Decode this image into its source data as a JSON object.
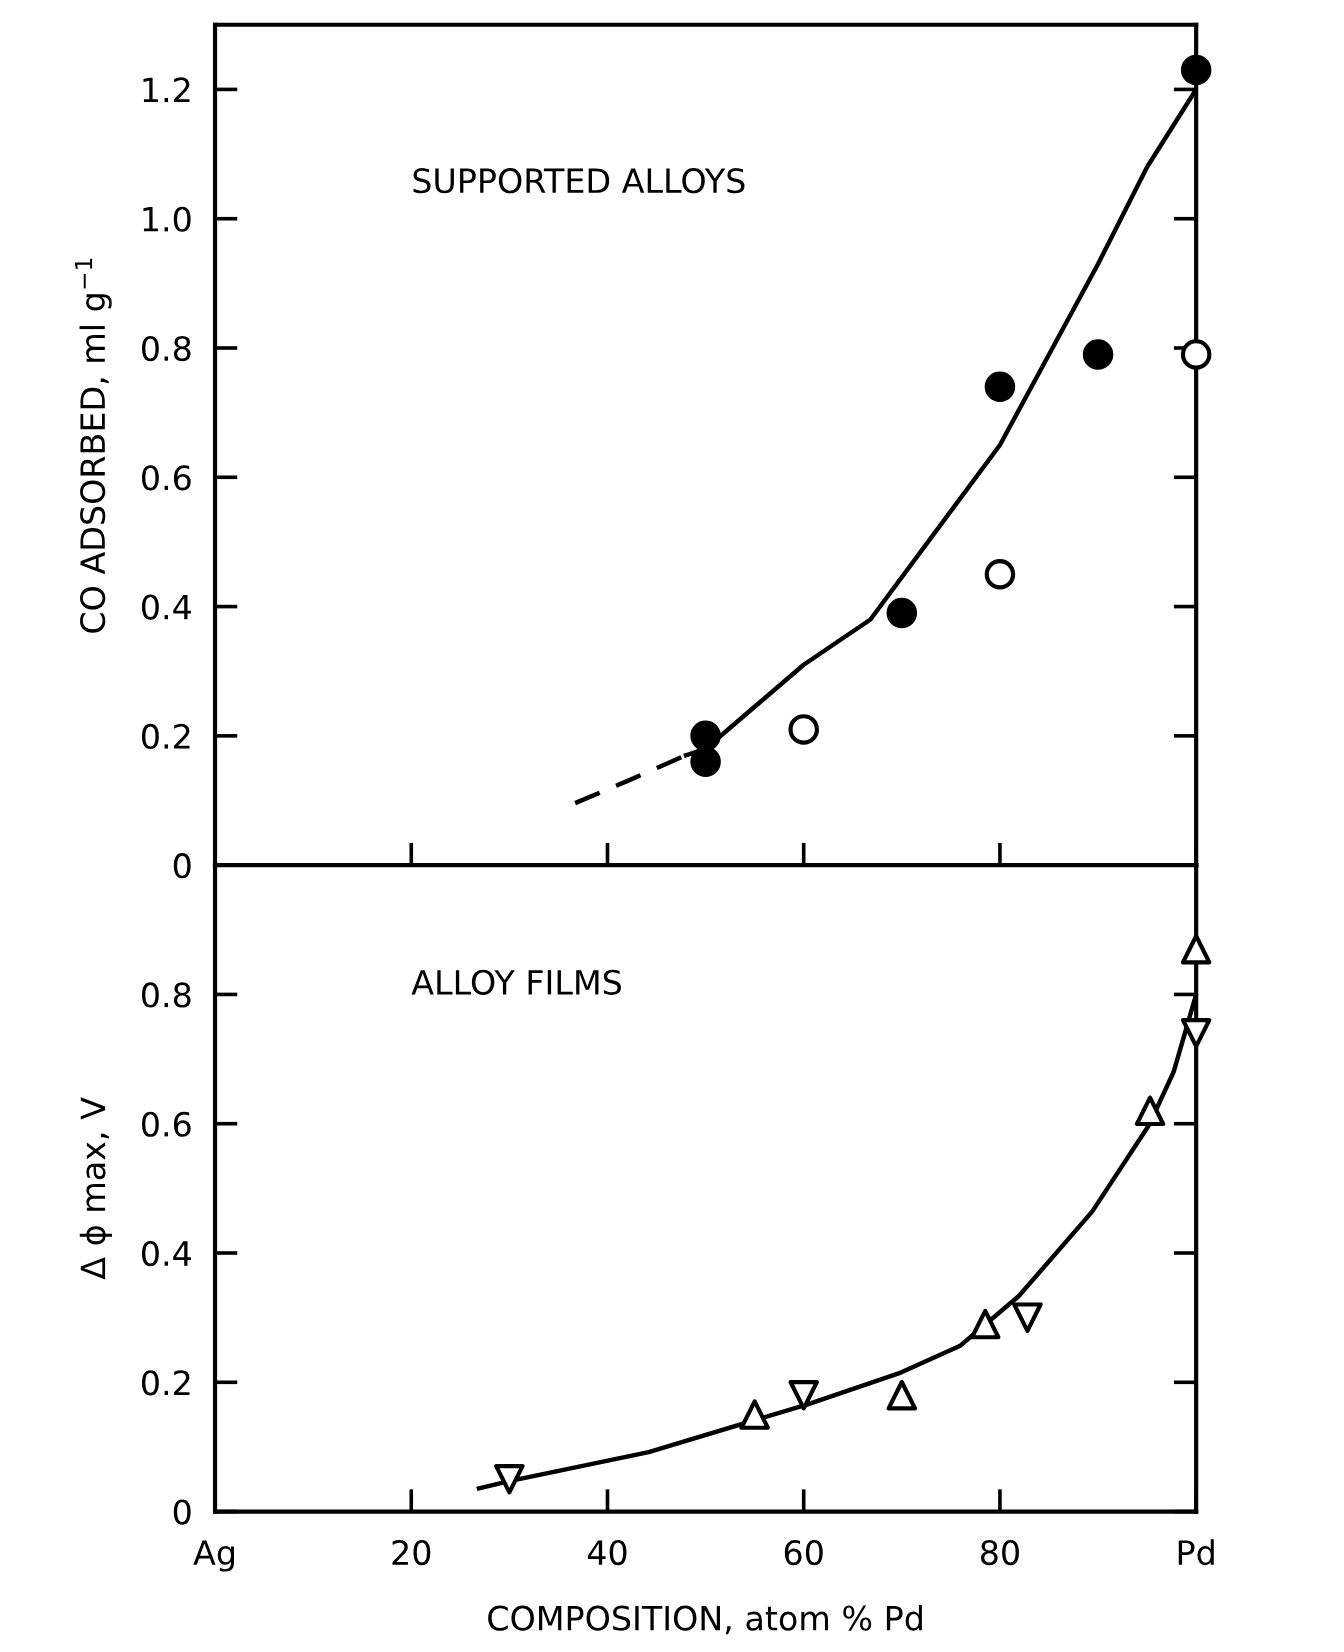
{
  "chart_data": [
    {
      "type": "scatter",
      "ylabel": "CO ADSORBED, ml g$^{−1}$",
      "annotations": [
        "SUPPORTED ALLOYS"
      ],
      "xlim": [
        0,
        100
      ],
      "xticks": [
        {
          "value": 0,
          "label": null
        },
        {
          "value": 20,
          "label": null
        },
        {
          "value": 40,
          "label": null
        },
        {
          "value": 60,
          "label": null
        },
        {
          "value": 80,
          "label": null
        },
        {
          "value": 100,
          "label": null
        }
      ],
      "ylim": [
        0,
        1.3
      ],
      "yticks": [
        0,
        0.2,
        0.4,
        0.6,
        0.8,
        {
          "value": 1.0,
          "label": "1.0"
        },
        1.2
      ],
      "tick_labels": "y",
      "grid": false,
      "legend": false,
      "series": [
        {
          "type": "scatter",
          "marker": "circle",
          "color": "#000000",
          "x": [
            50,
            50,
            70,
            80,
            90,
            100
          ],
          "values": [
            0.2,
            0.16,
            0.39,
            0.74,
            0.79,
            1.23
          ]
        },
        {
          "type": "scatter",
          "marker": "circle",
          "color": "#ffffff",
          "x": [
            60,
            80,
            100
          ],
          "values": [
            0.21,
            0.45,
            0.79
          ]
        },
        {
          "type": "line",
          "marker": "none",
          "line_style": "dashed",
          "color": "#000000",
          "x": [
            36.7,
            42,
            48
          ],
          "values": [
            0.096,
            0.13,
            0.17
          ]
        },
        {
          "type": "line",
          "marker": "none",
          "line_style": "solid",
          "color": "#000000",
          "x": [
            48,
            50,
            60,
            66.8,
            80,
            90,
            95,
            100
          ],
          "values": [
            0.17,
            0.18,
            0.31,
            0.38,
            0.65,
            0.93,
            1.08,
            1.2
          ]
        }
      ]
    },
    {
      "type": "scatter",
      "xlabel": "COMPOSITION, atom % Pd",
      "ylabel": "Δ ϕ max, V",
      "annotations": [
        "ALLOY FILMS"
      ],
      "xlim": [
        0,
        100
      ],
      "xticks": [
        {
          "value": 0,
          "label": "Ag"
        },
        20,
        40,
        60,
        80,
        {
          "value": 100,
          "label": "Pd"
        }
      ],
      "ylim": [
        0,
        1.0
      ],
      "yticks": [
        0,
        0.2,
        0.4,
        0.6,
        0.8
      ],
      "grid": false,
      "legend": false,
      "series": [
        {
          "type": "scatter",
          "marker": "triangle",
          "color": "#ffffff",
          "x": [
            55,
            70,
            78.5,
            95.3,
            100
          ],
          "values": [
            0.15,
            0.18,
            0.29,
            0.62,
            0.87
          ]
        },
        {
          "type": "scatter",
          "marker": "triangle_down",
          "color": "#ffffff",
          "x": [
            30,
            60,
            82.8,
            100
          ],
          "values": [
            0.05,
            0.18,
            0.3,
            0.74
          ]
        },
        {
          "type": "line",
          "marker": "none",
          "line_style": "solid",
          "color": "#000000",
          "x": [
            26.9,
            30,
            44.2,
            60.4,
            69.9,
            75.9,
            81.9,
            89.4,
            95.2,
            97.7,
            100
          ],
          "values": [
            0.036,
            0.047,
            0.092,
            0.166,
            0.215,
            0.256,
            0.333,
            0.464,
            0.598,
            0.68,
            0.8
          ]
        }
      ]
    }
  ]
}
